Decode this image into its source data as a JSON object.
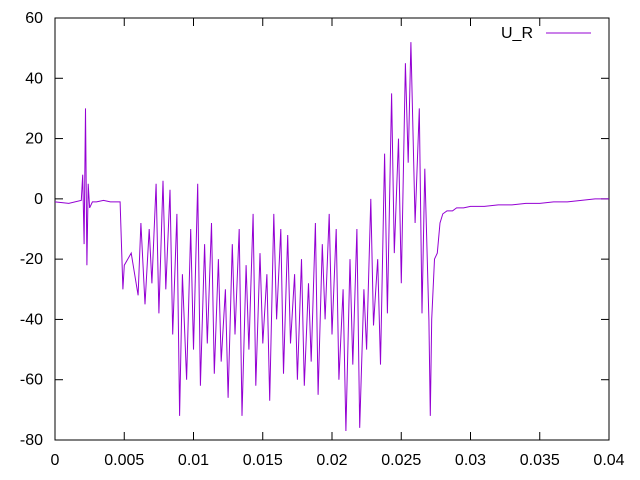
{
  "chart_data": {
    "type": "line",
    "xlim": [
      0,
      0.04
    ],
    "ylim": [
      -80,
      60
    ],
    "x_ticks": [
      0,
      0.005,
      0.01,
      0.015,
      0.02,
      0.025,
      0.03,
      0.035,
      0.04
    ],
    "x_tick_labels": [
      "0",
      "0.005",
      "0.01",
      "0.015",
      "0.02",
      "0.025",
      "0.03",
      "0.035",
      "0.04"
    ],
    "y_ticks": [
      -80,
      -60,
      -40,
      -20,
      0,
      20,
      40,
      60
    ],
    "y_tick_labels": [
      "-80",
      "-60",
      "-40",
      "-20",
      "0",
      "20",
      "40",
      "60"
    ],
    "grid": false,
    "legend_position": "top-right",
    "series": [
      {
        "name": "U_R",
        "color": "#9400d3",
        "x": [
          0,
          0.001,
          0.0019,
          0.002,
          0.0021,
          0.0022,
          0.0023,
          0.0024,
          0.0025,
          0.0027,
          0.003,
          0.0035,
          0.004,
          0.0044,
          0.0046,
          0.0047,
          0.0049,
          0.005,
          0.0055,
          0.006,
          0.0062,
          0.0065,
          0.0068,
          0.007,
          0.0073,
          0.0075,
          0.0078,
          0.008,
          0.0083,
          0.0085,
          0.0088,
          0.009,
          0.0092,
          0.0095,
          0.0098,
          0.01,
          0.0103,
          0.0105,
          0.0108,
          0.011,
          0.0113,
          0.0115,
          0.0118,
          0.012,
          0.0123,
          0.0125,
          0.0128,
          0.013,
          0.0133,
          0.0135,
          0.0138,
          0.014,
          0.0143,
          0.0145,
          0.0148,
          0.015,
          0.0153,
          0.0155,
          0.0158,
          0.016,
          0.0163,
          0.0165,
          0.0168,
          0.017,
          0.0173,
          0.0175,
          0.0178,
          0.018,
          0.0183,
          0.0185,
          0.0188,
          0.019,
          0.0193,
          0.0195,
          0.0198,
          0.02,
          0.0203,
          0.0205,
          0.0208,
          0.021,
          0.0213,
          0.0215,
          0.0218,
          0.022,
          0.0223,
          0.0225,
          0.0228,
          0.023,
          0.0233,
          0.0235,
          0.0238,
          0.024,
          0.0243,
          0.0245,
          0.0248,
          0.025,
          0.0253,
          0.0255,
          0.0257,
          0.026,
          0.0263,
          0.0265,
          0.0267,
          0.027,
          0.0271,
          0.0272,
          0.0274,
          0.0276,
          0.0278,
          0.028,
          0.0283,
          0.0287,
          0.029,
          0.0295,
          0.03,
          0.031,
          0.032,
          0.033,
          0.034,
          0.035,
          0.036,
          0.037,
          0.038,
          0.039,
          0.04
        ],
        "y": [
          -1,
          -1.5,
          -0.5,
          8,
          -15,
          30,
          -22,
          5,
          -3,
          -1,
          -1,
          -0.5,
          -1,
          -1,
          -1,
          -1,
          -30,
          -22,
          -18,
          -32,
          -8,
          -35,
          -10,
          -28,
          5,
          -38,
          6,
          -30,
          3,
          -45,
          -5,
          -72,
          -25,
          -60,
          -10,
          -50,
          5,
          -62,
          -15,
          -48,
          -8,
          -58,
          -20,
          -54,
          -30,
          -66,
          -15,
          -45,
          -10,
          -72,
          -22,
          -50,
          -5,
          -62,
          -18,
          -48,
          -25,
          -67,
          -5,
          -40,
          -10,
          -58,
          -12,
          -48,
          -25,
          -60,
          -20,
          -62,
          -28,
          -54,
          -8,
          -65,
          -15,
          -40,
          -5,
          -45,
          -10,
          -60,
          -30,
          -77,
          -20,
          -55,
          -10,
          -76,
          -30,
          -50,
          0,
          -42,
          -20,
          -55,
          15,
          -38,
          35,
          -18,
          20,
          -28,
          45,
          12,
          52,
          -8,
          30,
          -38,
          10,
          -40,
          -72,
          -40,
          -20,
          -18,
          -8,
          -5,
          -4,
          -4,
          -3,
          -3,
          -2.5,
          -2.5,
          -2,
          -2,
          -1.5,
          -1.5,
          -1,
          -1,
          -0.5,
          0,
          0
        ]
      }
    ]
  }
}
